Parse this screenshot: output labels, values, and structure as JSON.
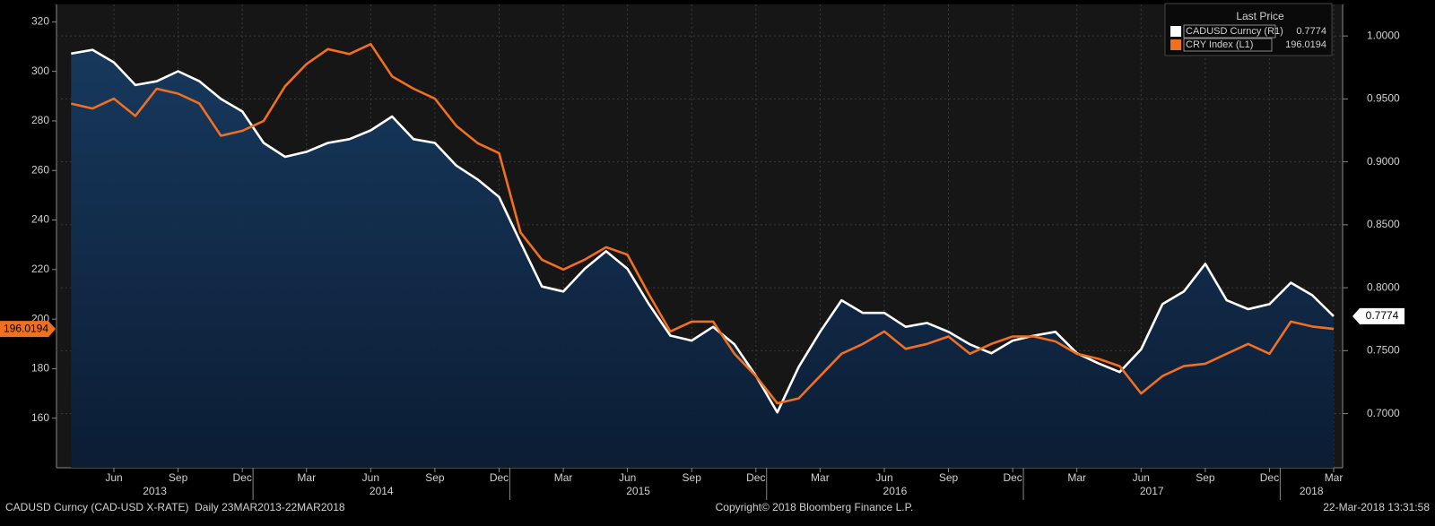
{
  "chart_data": {
    "type": "line",
    "x": [
      "2013-04",
      "2013-05",
      "2013-06",
      "2013-07",
      "2013-08",
      "2013-09",
      "2013-10",
      "2013-11",
      "2013-12",
      "2014-01",
      "2014-02",
      "2014-03",
      "2014-04",
      "2014-05",
      "2014-06",
      "2014-07",
      "2014-08",
      "2014-09",
      "2014-10",
      "2014-11",
      "2014-12",
      "2015-01",
      "2015-02",
      "2015-03",
      "2015-04",
      "2015-05",
      "2015-06",
      "2015-07",
      "2015-08",
      "2015-09",
      "2015-10",
      "2015-11",
      "2015-12",
      "2016-01",
      "2016-02",
      "2016-03",
      "2016-04",
      "2016-05",
      "2016-06",
      "2016-07",
      "2016-08",
      "2016-09",
      "2016-10",
      "2016-11",
      "2016-12",
      "2017-01",
      "2017-02",
      "2017-03",
      "2017-04",
      "2017-05",
      "2017-06",
      "2017-07",
      "2017-08",
      "2017-09",
      "2017-10",
      "2017-11",
      "2017-12",
      "2018-01",
      "2018-02",
      "2018-03"
    ],
    "series": [
      {
        "name": "CADUSD Curncy (R1)",
        "color": "#ffffff",
        "axis": "y2",
        "area": true,
        "area_color": "#0f2b4c",
        "values": [
          0.986,
          0.989,
          0.979,
          0.961,
          0.964,
          0.972,
          0.964,
          0.95,
          0.94,
          0.915,
          0.904,
          0.908,
          0.915,
          0.918,
          0.925,
          0.936,
          0.918,
          0.915,
          0.897,
          0.886,
          0.872,
          0.836,
          0.801,
          0.797,
          0.815,
          0.829,
          0.815,
          0.787,
          0.762,
          0.758,
          0.769,
          0.755,
          0.73,
          0.701,
          0.737,
          0.765,
          0.79,
          0.78,
          0.78,
          0.769,
          0.772,
          0.765,
          0.755,
          0.748,
          0.758,
          0.762,
          0.765,
          0.748,
          0.74,
          0.733,
          0.751,
          0.787,
          0.797,
          0.819,
          0.79,
          0.783,
          0.787,
          0.804,
          0.794,
          0.7774
        ]
      },
      {
        "name": "CRY Index (L1)",
        "color": "#f07020",
        "axis": "y",
        "values": [
          287,
          285,
          289,
          282,
          293,
          291,
          287,
          274,
          276,
          280,
          294,
          303,
          309,
          307,
          311,
          298,
          293,
          289,
          278,
          271,
          267,
          235,
          224,
          220,
          224,
          229,
          226,
          210,
          195,
          199,
          199,
          186,
          177,
          166,
          168,
          177,
          186,
          190,
          195,
          188,
          190,
          193,
          186,
          190,
          193,
          193,
          191,
          186,
          184,
          181,
          170,
          177,
          181,
          182,
          186,
          190,
          186,
          199,
          197,
          196.0194
        ]
      }
    ],
    "ylim": [
      140,
      327
    ],
    "yticks": [
      160,
      180,
      200,
      220,
      240,
      260,
      280,
      300,
      320
    ],
    "y2lim": [
      0.657,
      1.025
    ],
    "y2ticks": [
      {
        "value": 0.7,
        "label": "0.7000"
      },
      {
        "value": 0.75,
        "label": "0.7500"
      },
      {
        "value": 0.8,
        "label": "0.8000"
      },
      {
        "value": 0.85,
        "label": "0.8500"
      },
      {
        "value": 0.9,
        "label": "0.9000"
      },
      {
        "value": 0.95,
        "label": "0.9500"
      },
      {
        "value": 1.0,
        "label": "1.0000"
      }
    ],
    "xticks": [
      {
        "value": "2013-06",
        "label": "Jun"
      },
      {
        "value": "2013-09",
        "label": "Sep"
      },
      {
        "value": "2013-12",
        "label": "Dec"
      },
      {
        "value": "2014-03",
        "label": "Mar"
      },
      {
        "value": "2014-06",
        "label": "Jun"
      },
      {
        "value": "2014-09",
        "label": "Sep"
      },
      {
        "value": "2014-12",
        "label": "Dec"
      },
      {
        "value": "2015-03",
        "label": "Mar"
      },
      {
        "value": "2015-06",
        "label": "Jun"
      },
      {
        "value": "2015-09",
        "label": "Sep"
      },
      {
        "value": "2015-12",
        "label": "Dec"
      },
      {
        "value": "2016-03",
        "label": "Mar"
      },
      {
        "value": "2016-06",
        "label": "Jun"
      },
      {
        "value": "2016-09",
        "label": "Sep"
      },
      {
        "value": "2016-12",
        "label": "Dec"
      },
      {
        "value": "2017-03",
        "label": "Mar"
      },
      {
        "value": "2017-06",
        "label": "Jun"
      },
      {
        "value": "2017-09",
        "label": "Sep"
      },
      {
        "value": "2017-12",
        "label": "Dec"
      },
      {
        "value": "2018-03",
        "label": "Mar"
      }
    ],
    "years": [
      "2013",
      "2014",
      "2015",
      "2016",
      "2017",
      "2018"
    ],
    "grid": true,
    "legend_title": "Last Price",
    "legend": "upper right"
  },
  "footer": {
    "left": "CADUSD Curncy (CAD-USD X-RATE)  Daily 23MAR2013-22MAR2018",
    "center": "Copyright© 2018 Bloomberg Finance L.P.",
    "right": "22-Mar-2018 13:31:58"
  }
}
